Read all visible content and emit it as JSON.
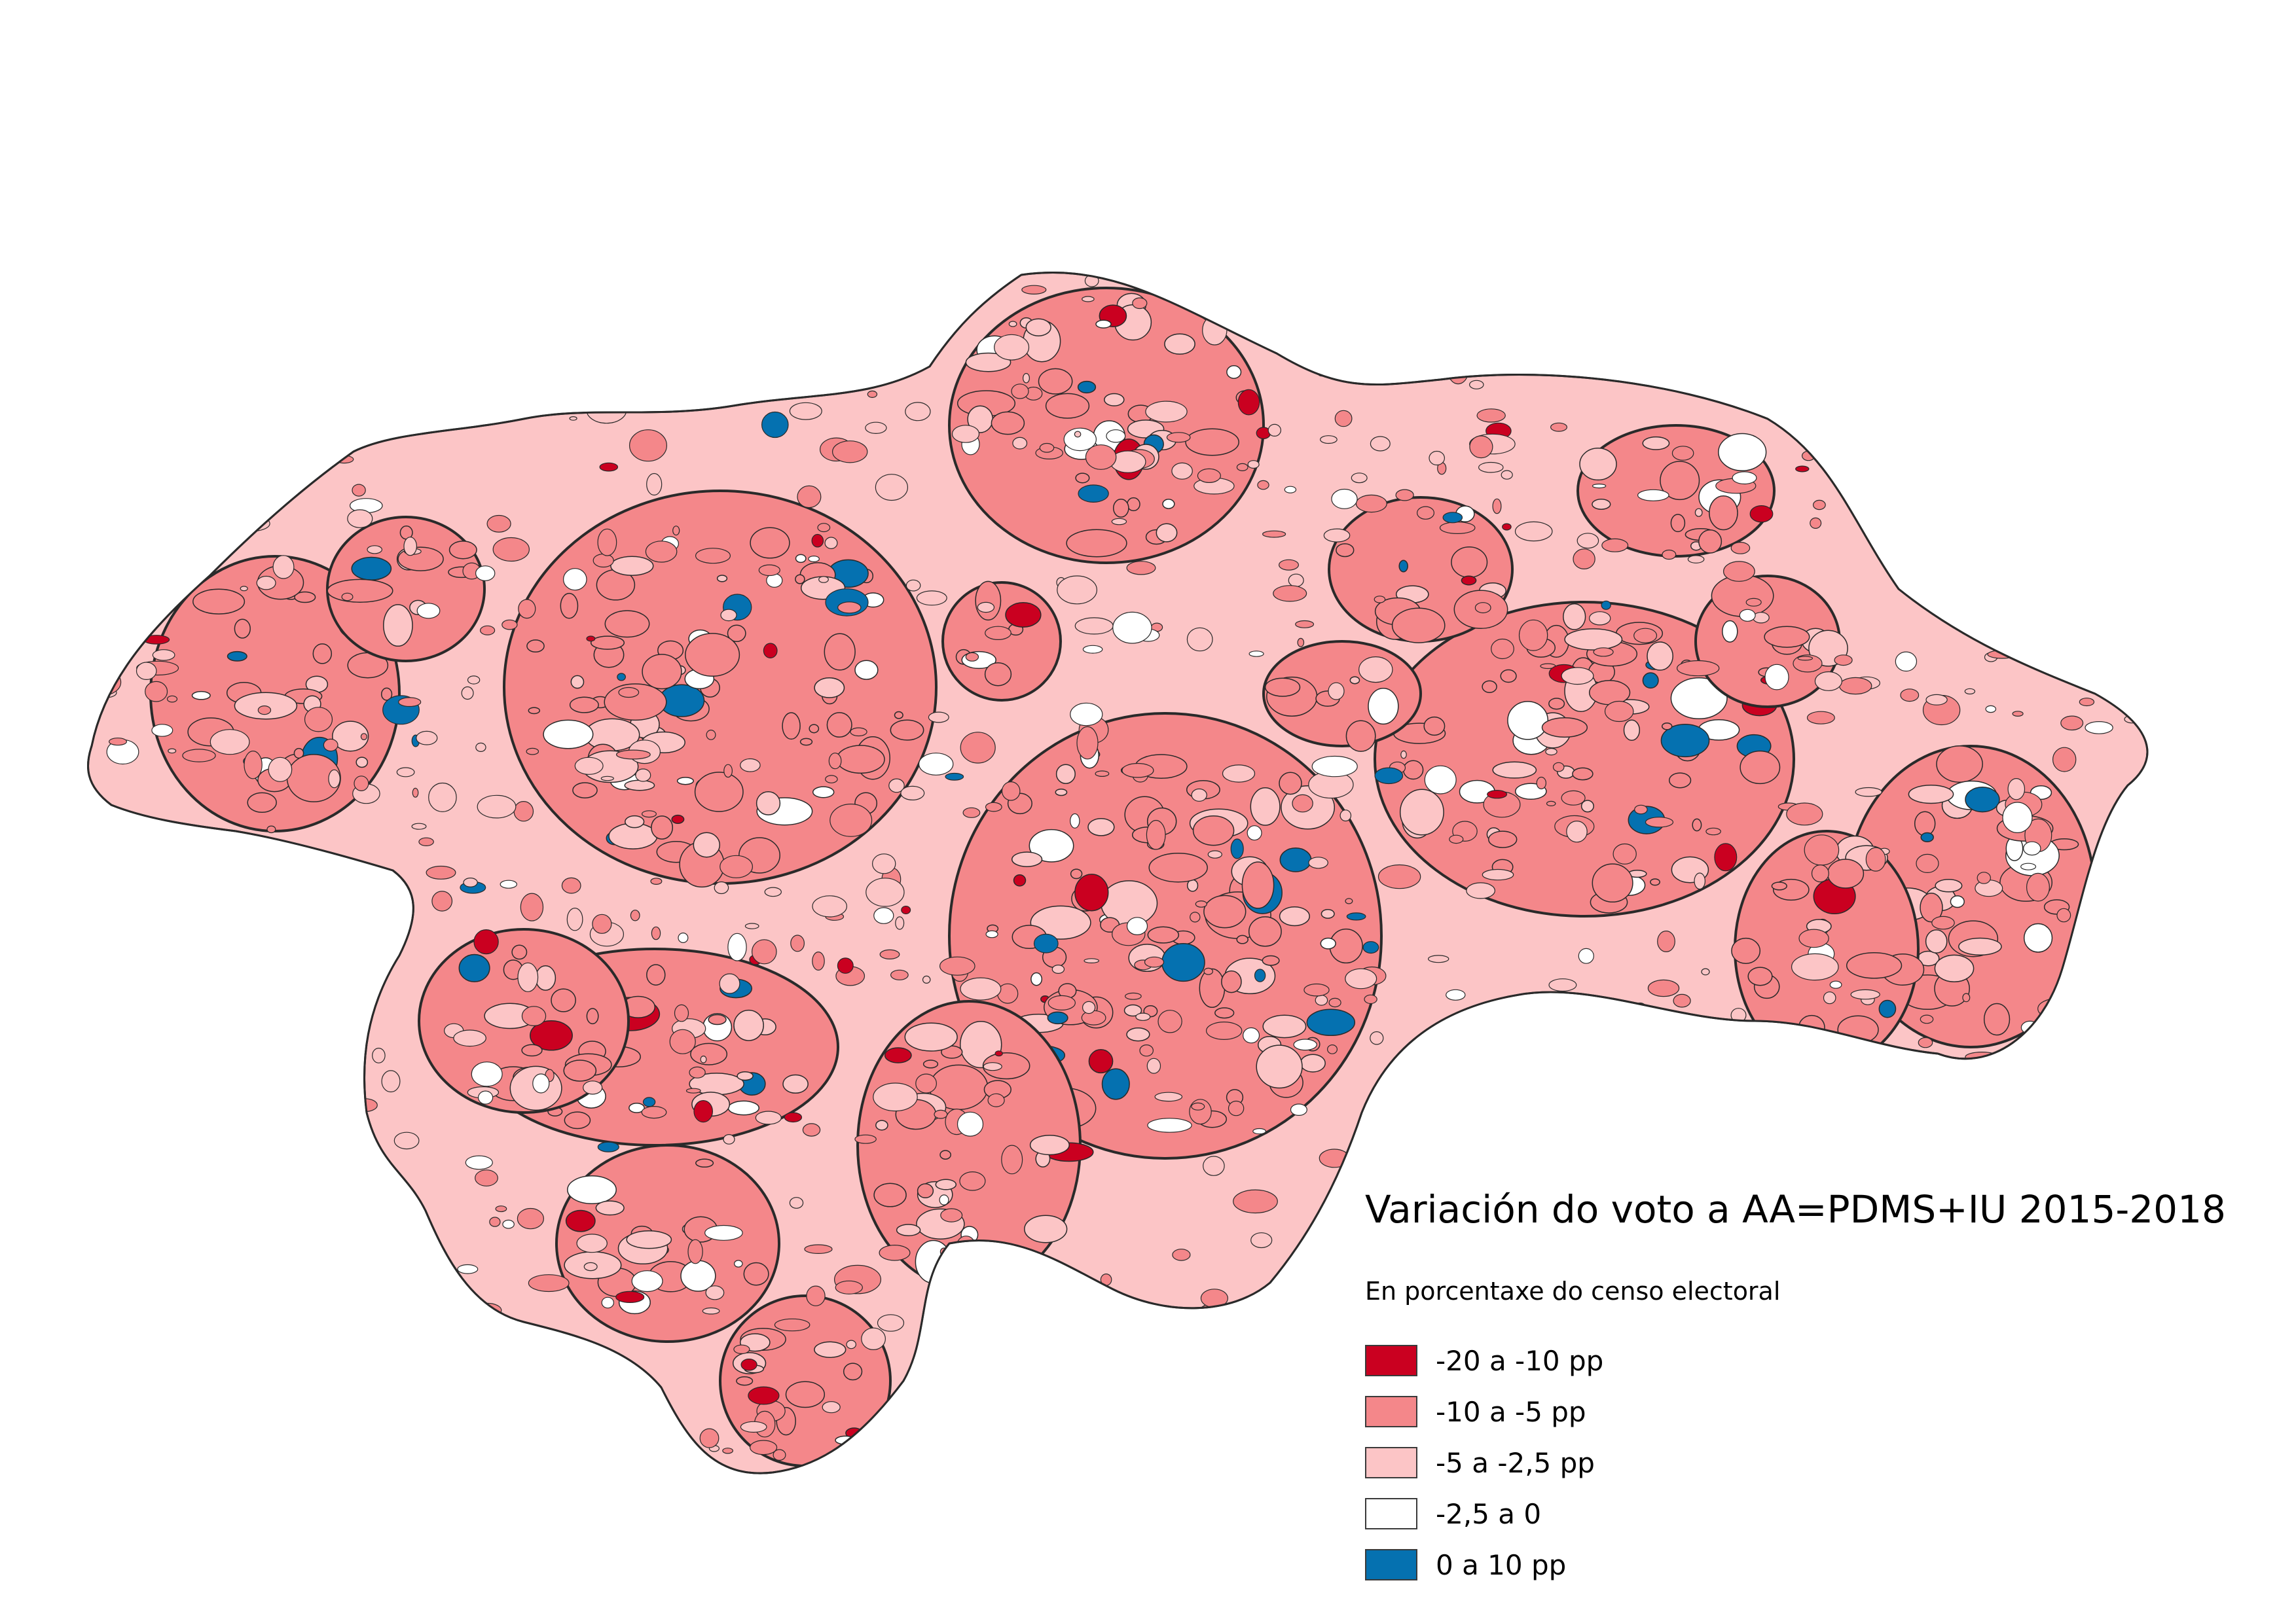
{
  "map": {
    "title": "Variación do voto a AA=PDMS+IU 2015-2018",
    "subtitle": "En porcentaxe do censo electoral",
    "outline_color": "#2a2a2a",
    "legend": [
      {
        "key": "c1",
        "label": "-20 a -10 pp",
        "color": "#ca0020"
      },
      {
        "key": "c2",
        "label": "-10 a -5 pp",
        "color": "#f4878a"
      },
      {
        "key": "c3",
        "label": "-5 a -2,5 pp",
        "color": "#fcc5c6"
      },
      {
        "key": "c4",
        "label": "-2,5 a 0",
        "color": "#ffffff"
      },
      {
        "key": "c5",
        "label": "0 a 10 pp",
        "color": "#0571b0"
      }
    ]
  }
}
